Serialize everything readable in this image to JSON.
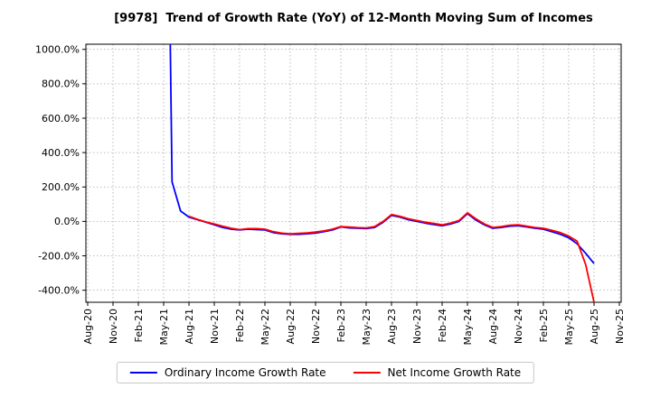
{
  "chart_data": {
    "type": "line",
    "title": "[9978]  Trend of Growth Rate (YoY) of 12-Month Moving Sum of Incomes",
    "x": [
      "Aug-20",
      "Sep-20",
      "Oct-20",
      "Nov-20",
      "Dec-20",
      "Jan-21",
      "Feb-21",
      "Mar-21",
      "Apr-21",
      "May-21",
      "Jun-21",
      "Jul-21",
      "Aug-21",
      "Sep-21",
      "Oct-21",
      "Nov-21",
      "Dec-21",
      "Jan-22",
      "Feb-22",
      "Mar-22",
      "Apr-22",
      "May-22",
      "Jun-22",
      "Jul-22",
      "Aug-22",
      "Sep-22",
      "Oct-22",
      "Nov-22",
      "Dec-22",
      "Jan-23",
      "Feb-23",
      "Mar-23",
      "Apr-23",
      "May-23",
      "Jun-23",
      "Jul-23",
      "Aug-23",
      "Sep-23",
      "Oct-23",
      "Nov-23",
      "Dec-23",
      "Jan-24",
      "Feb-24",
      "Mar-24",
      "Apr-24",
      "May-24",
      "Jun-24",
      "Jul-24",
      "Aug-24",
      "Sep-24",
      "Oct-24",
      "Nov-24",
      "Dec-24",
      "Jan-25",
      "Feb-25",
      "Mar-25",
      "Apr-25",
      "May-25",
      "Jun-25",
      "Jul-25",
      "Aug-25",
      "Sep-25",
      "Oct-25",
      "Nov-25"
    ],
    "x_tick_step": 3,
    "x_tick_labels": [
      "Aug-20",
      "Nov-20",
      "Feb-21",
      "May-21",
      "Aug-21",
      "Nov-21",
      "Feb-22",
      "May-22",
      "Aug-22",
      "Nov-22",
      "Feb-23",
      "May-23",
      "Aug-23",
      "Nov-23",
      "Feb-24",
      "May-24",
      "Aug-24",
      "Nov-24",
      "Feb-25",
      "May-25",
      "Aug-25",
      "Nov-25"
    ],
    "ylim": [
      -470,
      1030
    ],
    "yticks": [
      1000,
      800,
      600,
      400,
      200,
      0,
      -200,
      -400
    ],
    "ytick_unit": "%",
    "grid": true,
    "legend_position": "bottom-center",
    "series": [
      {
        "name": "Ordinary Income Growth Rate",
        "color": "#0000ff",
        "values": [
          null,
          null,
          null,
          null,
          null,
          null,
          null,
          null,
          null,
          4000,
          230,
          60,
          25,
          10,
          -5,
          -20,
          -35,
          -45,
          -50,
          -45,
          -48,
          -50,
          -65,
          -72,
          -75,
          -75,
          -72,
          -68,
          -60,
          -50,
          -32,
          -38,
          -40,
          -42,
          -35,
          -5,
          35,
          25,
          10,
          0,
          -10,
          -18,
          -25,
          -15,
          0,
          45,
          8,
          -20,
          -40,
          -35,
          -28,
          -25,
          -32,
          -40,
          -45,
          -60,
          -75,
          -95,
          -130,
          -185,
          -245,
          null,
          null,
          null
        ]
      },
      {
        "name": "Net Income Growth Rate",
        "color": "#ff0000",
        "values": [
          null,
          null,
          null,
          null,
          null,
          null,
          null,
          null,
          null,
          null,
          null,
          null,
          30,
          12,
          -3,
          -15,
          -28,
          -40,
          -48,
          -42,
          -42,
          -45,
          -60,
          -68,
          -72,
          -70,
          -67,
          -62,
          -55,
          -45,
          -30,
          -33,
          -36,
          -38,
          -30,
          0,
          40,
          30,
          15,
          5,
          -5,
          -12,
          -20,
          -10,
          5,
          50,
          15,
          -15,
          -35,
          -30,
          -22,
          -20,
          -28,
          -35,
          -40,
          -52,
          -65,
          -85,
          -115,
          -250,
          -470,
          null,
          null,
          null
        ]
      }
    ],
    "colors": {
      "grid": "#aaaaaa",
      "axis": "#000000",
      "background": "#ffffff"
    }
  }
}
